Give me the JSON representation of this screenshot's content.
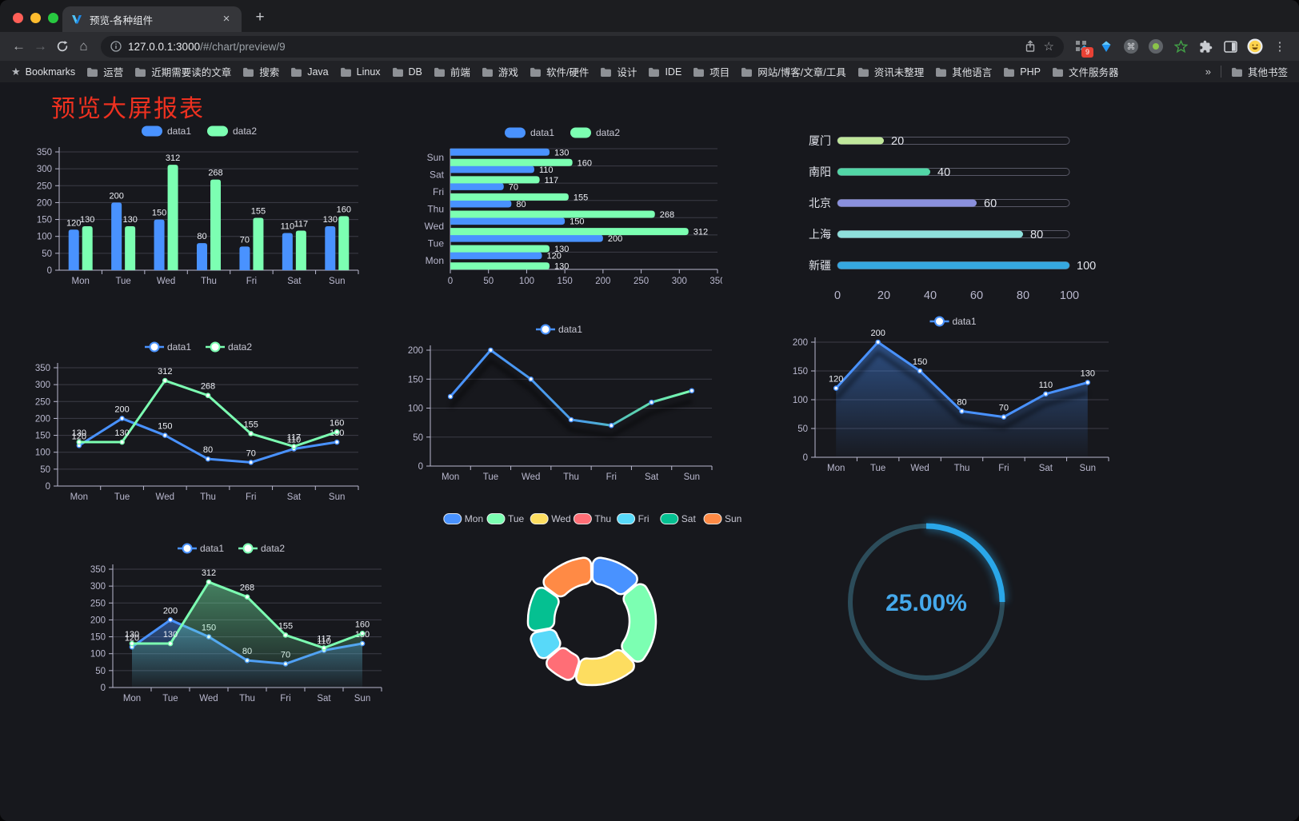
{
  "browser": {
    "tab_title": "预览-各种组件",
    "url_host": "127.0.0.1:3000",
    "url_path": "/#/chart/preview/9",
    "extension_badge": "9",
    "bookmarks_label": "Bookmarks",
    "bookmarks": [
      "运营",
      "近期需要读的文章",
      "搜索",
      "Java",
      "Linux",
      "DB",
      "前端",
      "游戏",
      "软件/硬件",
      "设计",
      "IDE",
      "项目",
      "网站/博客/文章/工具",
      "资讯未整理",
      "其他语言",
      "PHP",
      "文件服务器"
    ],
    "bookmarks_overflow": "»",
    "other_bookmarks": "其他书签"
  },
  "page": {
    "title": "预览大屏报表",
    "title_color": "#ee3120",
    "background": "#17181d"
  },
  "chart_data": [
    {
      "id": "bar-vertical",
      "type": "bar",
      "categories": [
        "Mon",
        "Tue",
        "Wed",
        "Thu",
        "Fri",
        "Sat",
        "Sun"
      ],
      "series": [
        {
          "name": "data1",
          "color": "#4992ff",
          "values": [
            120,
            200,
            150,
            80,
            70,
            110,
            130
          ]
        },
        {
          "name": "data2",
          "color": "#7cffb2",
          "values": [
            130,
            130,
            312,
            268,
            155,
            117,
            160
          ]
        }
      ],
      "ylim": [
        0,
        350
      ],
      "ytick_step": 50,
      "legend_position": "top",
      "grid": true,
      "value_labels": true
    },
    {
      "id": "bar-horizontal",
      "type": "hbar",
      "categories": [
        "Mon",
        "Tue",
        "Wed",
        "Thu",
        "Fri",
        "Sat",
        "Sun"
      ],
      "series": [
        {
          "name": "data1",
          "color": "#4992ff",
          "values": [
            120,
            200,
            150,
            80,
            70,
            110,
            130
          ]
        },
        {
          "name": "data2",
          "color": "#7cffb2",
          "values": [
            130,
            130,
            312,
            268,
            155,
            117,
            160
          ]
        }
      ],
      "xlim": [
        0,
        350
      ],
      "xtick_step": 50,
      "legend_position": "top",
      "value_labels": true
    },
    {
      "id": "progress-bars",
      "type": "progress",
      "items": [
        {
          "label": "厦门",
          "value": 20,
          "color": "#c0e79b"
        },
        {
          "label": "南阳",
          "value": 40,
          "color": "#52d6a6"
        },
        {
          "label": "北京",
          "value": 60,
          "color": "#8a90dd"
        },
        {
          "label": "上海",
          "value": 80,
          "color": "#8edfdb"
        },
        {
          "label": "新疆",
          "value": 100,
          "color": "#35a7e0"
        }
      ],
      "xlim": [
        0,
        100
      ],
      "xtick_step": 20
    },
    {
      "id": "line-two-series",
      "type": "line",
      "categories": [
        "Mon",
        "Tue",
        "Wed",
        "Thu",
        "Fri",
        "Sat",
        "Sun"
      ],
      "series": [
        {
          "name": "data1",
          "color": "#4992ff",
          "values": [
            120,
            200,
            150,
            80,
            70,
            110,
            130
          ]
        },
        {
          "name": "data2",
          "color": "#7cffb2",
          "values": [
            130,
            130,
            312,
            268,
            155,
            117,
            160
          ]
        }
      ],
      "ylim": [
        0,
        350
      ],
      "ytick_step": 50,
      "legend_position": "top",
      "value_labels": true
    },
    {
      "id": "line-gradient",
      "type": "line",
      "categories": [
        "Mon",
        "Tue",
        "Wed",
        "Thu",
        "Fri",
        "Sat",
        "Sun"
      ],
      "series": [
        {
          "name": "data1",
          "gradient": [
            "#4992ff",
            "#7cffb2"
          ],
          "values": [
            120,
            200,
            150,
            80,
            70,
            110,
            130
          ]
        }
      ],
      "ylim": [
        0,
        200
      ],
      "ytick_step": 50,
      "legend_position": "top",
      "value_labels": false
    },
    {
      "id": "line-area-blue",
      "type": "line",
      "categories": [
        "Mon",
        "Tue",
        "Wed",
        "Thu",
        "Fri",
        "Sat",
        "Sun"
      ],
      "series": [
        {
          "name": "data1",
          "color": "#4992ff",
          "values": [
            120,
            200,
            150,
            80,
            70,
            110,
            130
          ]
        }
      ],
      "ylim": [
        0,
        200
      ],
      "ytick_step": 50,
      "legend_position": "top",
      "value_labels": true
    },
    {
      "id": "line-area-two-series",
      "type": "line",
      "categories": [
        "Mon",
        "Tue",
        "Wed",
        "Thu",
        "Fri",
        "Sat",
        "Sun"
      ],
      "series": [
        {
          "name": "data1",
          "color": "#4992ff",
          "values": [
            120,
            200,
            150,
            80,
            70,
            110,
            130
          ]
        },
        {
          "name": "data2",
          "color": "#7cffb2",
          "values": [
            130,
            130,
            312,
            268,
            155,
            117,
            160
          ]
        }
      ],
      "ylim": [
        0,
        350
      ],
      "ytick_step": 50,
      "legend_position": "top",
      "value_labels": true
    },
    {
      "id": "donut",
      "type": "pie",
      "legend_position": "top",
      "inner_radius_ratio": 0.59,
      "slices": [
        {
          "label": "Mon",
          "value": 120,
          "color": "#4992ff"
        },
        {
          "label": "Tue",
          "value": 200,
          "color": "#7cffb2"
        },
        {
          "label": "Wed",
          "value": 150,
          "color": "#fddd60"
        },
        {
          "label": "Thu",
          "value": 80,
          "color": "#ff6e76"
        },
        {
          "label": "Fri",
          "value": 70,
          "color": "#58d9f9"
        },
        {
          "label": "Sat",
          "value": 110,
          "color": "#05c091"
        },
        {
          "label": "Sun",
          "value": 130,
          "color": "#ff8a45"
        }
      ]
    },
    {
      "id": "gauge",
      "type": "gauge",
      "value": 25,
      "display": "25.00%",
      "color": "#2aa7e9",
      "track_color": "#2c4c5a",
      "text_color": "#45a9ec"
    }
  ]
}
